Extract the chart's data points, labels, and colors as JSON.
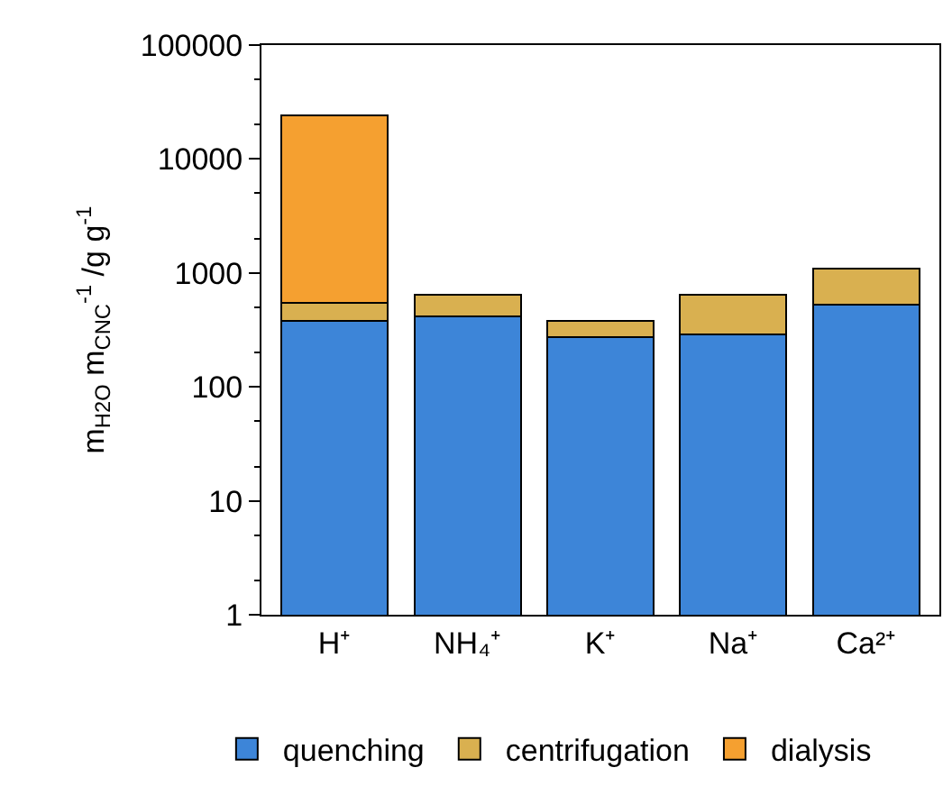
{
  "chart_data": {
    "type": "bar",
    "stacked": true,
    "log": true,
    "ylabel": "m$_{H2O}$ m$_{CNC}$$^{-1}$ /g g$^{-1}$",
    "categories": [
      "H⁺",
      "NH₄⁺",
      "K⁺",
      "Na⁺",
      "Ca²⁺"
    ],
    "series": [
      {
        "name": "quenching",
        "color": "#3d85d8",
        "values": [
          380,
          419,
          274,
          287,
          530
        ]
      },
      {
        "name": "centrifugation",
        "color": "#d9b050",
        "values": [
          162,
          221,
          106,
          353,
          557
        ]
      },
      {
        "name": "dialysis",
        "color": "#f5a030",
        "values": [
          23400,
          null,
          null,
          null,
          null
        ]
      }
    ],
    "ylim": [
      1,
      100000
    ],
    "yticks": [
      1,
      10,
      100,
      1000,
      10000,
      100000
    ],
    "legend": "bottom"
  }
}
